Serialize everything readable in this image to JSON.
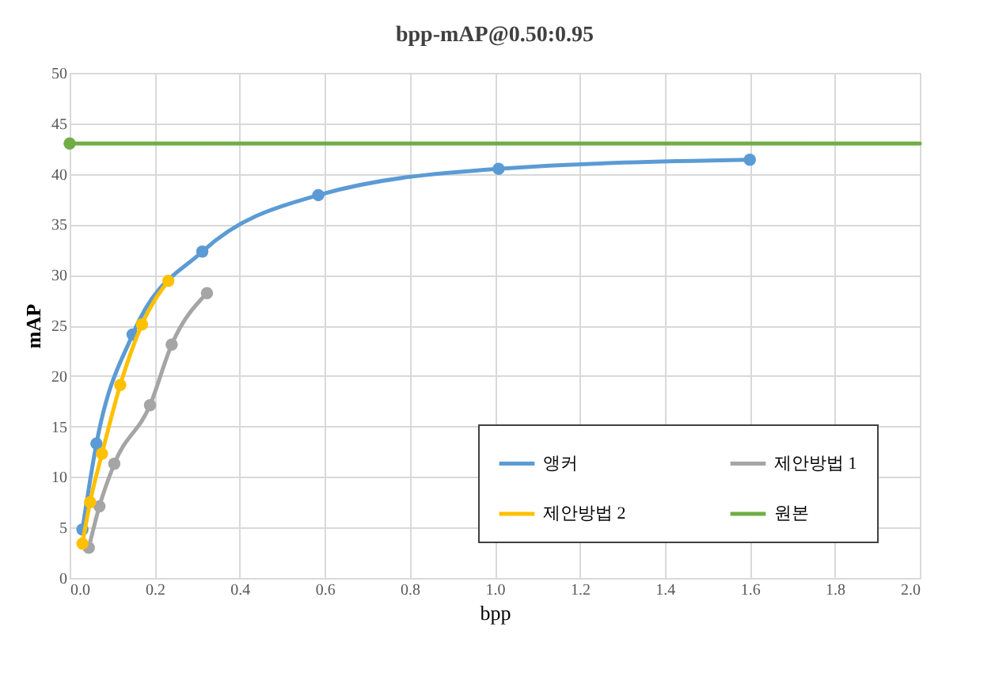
{
  "chart_data": {
    "type": "line",
    "title": "bpp-mAP@0.50:0.95",
    "xlabel": "bpp",
    "ylabel": "mAP",
    "xlim": [
      0,
      2.0
    ],
    "xticks": [
      {
        "value": 0,
        "label": "0.0"
      },
      0.2,
      0.4,
      0.6,
      0.8,
      {
        "value": 1,
        "label": "1.0"
      },
      1.2,
      1.4,
      1.6,
      1.8,
      {
        "value": 2,
        "label": "2.0"
      }
    ],
    "ylim": [
      0,
      50
    ],
    "yticks": [
      0,
      5,
      10,
      15,
      20,
      25,
      30,
      35,
      40,
      45,
      50
    ],
    "grid": true,
    "legend": "bottom right",
    "marker": "circle",
    "line_style": "solid",
    "series": [
      {
        "name": "앵커",
        "color": "#5b9bd5",
        "x": [
          0.03,
          0.063,
          0.148,
          0.312,
          0.585,
          1.009,
          1.6
        ],
        "values": [
          4.8,
          13.3,
          24.1,
          32.3,
          37.9,
          40.5,
          41.4
        ]
      },
      {
        "name": "제안방법 1",
        "color": "#a5a5a5",
        "x": [
          0.045,
          0.07,
          0.105,
          0.189,
          0.24,
          0.323
        ],
        "values": [
          3.0,
          7.1,
          11.3,
          17.1,
          23.1,
          28.2
        ]
      },
      {
        "name": "제안방법 2",
        "color": "#ffc000",
        "x": [
          0.03,
          0.048,
          0.076,
          0.119,
          0.17,
          0.232
        ],
        "values": [
          3.4,
          7.5,
          12.3,
          19.1,
          25.1,
          29.4
        ]
      },
      {
        "name": "원본",
        "color": "#70ad47",
        "x": [
          0,
          2.0
        ],
        "values": [
          43,
          43
        ]
      }
    ]
  }
}
